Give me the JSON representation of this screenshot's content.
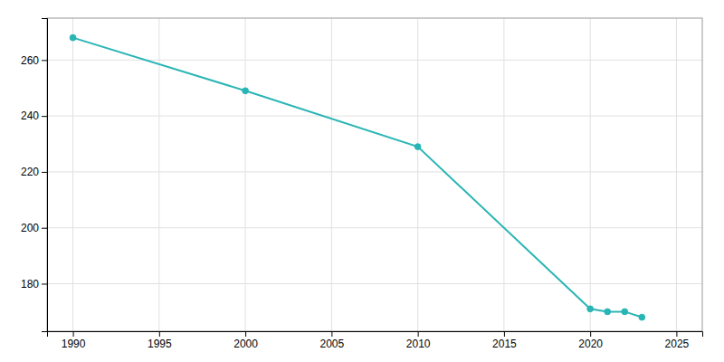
{
  "chart_data": {
    "type": "line",
    "x": [
      1990,
      2000,
      2010,
      2020,
      2021,
      2022,
      2023
    ],
    "values": [
      268,
      249,
      229,
      171,
      170,
      170,
      168
    ],
    "color": "#2ab5b5",
    "marker": "circle",
    "xlim": [
      1988.5,
      2026.5
    ],
    "ylim": [
      163,
      275
    ],
    "xticks": [
      1990,
      1995,
      2000,
      2005,
      2010,
      2015,
      2020,
      2025
    ],
    "yticks": [
      180,
      200,
      220,
      240,
      260
    ],
    "grid": true
  }
}
